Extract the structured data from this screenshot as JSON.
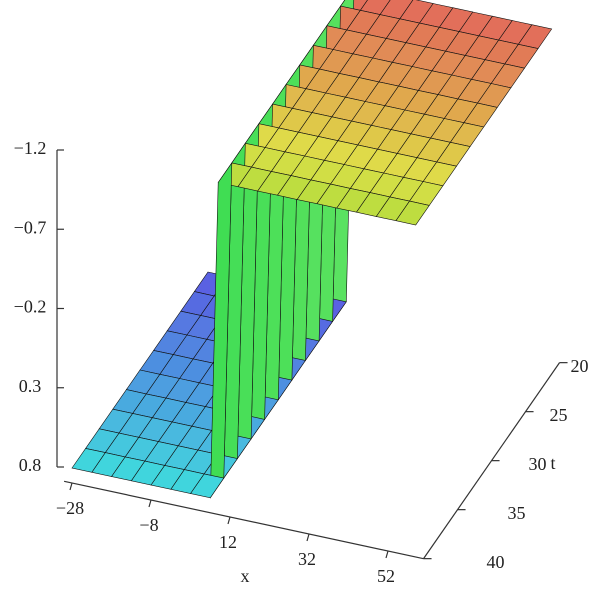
{
  "chart_data": {
    "type": "surface3d",
    "x_label": "x",
    "t_label": "t",
    "x": [
      -28,
      -23,
      -18,
      -13,
      -8,
      -3,
      2,
      7,
      9,
      14,
      19,
      24,
      29,
      34,
      39,
      44,
      49,
      54,
      59
    ],
    "t": [
      20,
      22,
      24,
      26,
      28,
      30,
      32,
      34,
      36,
      38,
      40
    ],
    "z": [
      [
        0.8,
        0.8,
        0.8,
        0.8,
        0.8,
        0.8,
        0.8,
        0.8,
        -1.2,
        -1.2,
        -1.2,
        -1.2,
        -1.2,
        -1.2,
        -1.2,
        -1.2,
        -1.2,
        -1.2,
        -1.2
      ],
      [
        0.8,
        0.8,
        0.8,
        0.8,
        0.8,
        0.8,
        0.8,
        0.8,
        -1.2,
        -1.2,
        -1.2,
        -1.2,
        -1.2,
        -1.2,
        -1.2,
        -1.2,
        -1.2,
        -1.2,
        -1.2
      ],
      [
        0.8,
        0.8,
        0.8,
        0.8,
        0.8,
        0.8,
        0.8,
        0.8,
        -1.2,
        -1.2,
        -1.2,
        -1.2,
        -1.2,
        -1.2,
        -1.2,
        -1.2,
        -1.2,
        -1.2,
        -1.2
      ],
      [
        0.8,
        0.8,
        0.8,
        0.8,
        0.8,
        0.8,
        0.8,
        0.8,
        -1.2,
        -1.2,
        -1.2,
        -1.2,
        -1.2,
        -1.2,
        -1.2,
        -1.2,
        -1.2,
        -1.2,
        -1.2
      ],
      [
        0.8,
        0.8,
        0.8,
        0.8,
        0.8,
        0.8,
        0.8,
        0.8,
        -1.2,
        -1.2,
        -1.2,
        -1.2,
        -1.2,
        -1.2,
        -1.2,
        -1.2,
        -1.2,
        -1.2,
        -1.2
      ],
      [
        0.8,
        0.8,
        0.8,
        0.8,
        0.8,
        0.8,
        0.8,
        0.8,
        -1.2,
        -1.2,
        -1.2,
        -1.2,
        -1.2,
        -1.2,
        -1.2,
        -1.2,
        -1.2,
        -1.2,
        -1.2
      ],
      [
        0.8,
        0.8,
        0.8,
        0.8,
        0.8,
        0.8,
        0.8,
        0.8,
        -1.2,
        -1.2,
        -1.2,
        -1.2,
        -1.2,
        -1.2,
        -1.2,
        -1.2,
        -1.2,
        -1.2,
        -1.2
      ],
      [
        0.8,
        0.8,
        0.8,
        0.8,
        0.8,
        0.8,
        0.8,
        0.8,
        -1.2,
        -1.2,
        -1.2,
        -1.2,
        -1.2,
        -1.2,
        -1.2,
        -1.2,
        -1.2,
        -1.2,
        -1.2
      ],
      [
        0.8,
        0.8,
        0.8,
        0.8,
        0.8,
        0.8,
        0.8,
        0.8,
        -1.2,
        -1.2,
        -1.2,
        -1.2,
        -1.2,
        -1.2,
        -1.2,
        -1.2,
        -1.2,
        -1.2,
        -1.2
      ],
      [
        0.8,
        0.8,
        0.8,
        0.8,
        0.8,
        0.8,
        0.8,
        0.8,
        -1.2,
        -1.2,
        -1.2,
        -1.2,
        -1.2,
        -1.2,
        -1.2,
        -1.2,
        -1.2,
        -1.2,
        -1.2
      ],
      [
        0.8,
        0.8,
        0.8,
        0.8,
        0.8,
        0.8,
        0.8,
        0.8,
        -1.2,
        -1.2,
        -1.2,
        -1.2,
        -1.2,
        -1.2,
        -1.2,
        -1.2,
        -1.2,
        -1.2,
        -1.2
      ]
    ],
    "xlim": [
      -30,
      61
    ],
    "tlim": [
      20,
      40
    ],
    "zlim": [
      0.8,
      -1.2
    ],
    "xticks": [
      {
        "value": -28,
        "label": "−28"
      },
      {
        "value": -8,
        "label": "−8"
      },
      12,
      32,
      52
    ],
    "tticks": [
      20,
      25,
      30,
      35,
      40
    ],
    "zticks": [
      {
        "value": -1.2,
        "label": "−1.2"
      },
      {
        "value": -0.7,
        "label": "−0.7"
      },
      {
        "value": -0.2,
        "label": "−0.2"
      },
      0.3,
      0.8
    ]
  }
}
